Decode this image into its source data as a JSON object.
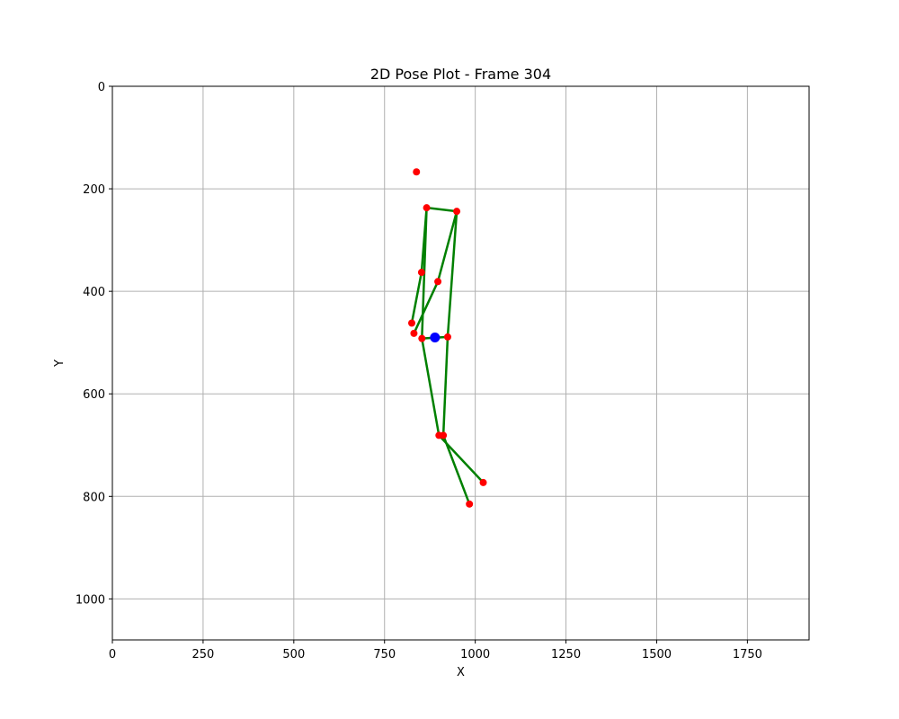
{
  "chart_data": {
    "type": "scatter",
    "title": "2D Pose Plot - Frame 304",
    "xlabel": "X",
    "ylabel": "Y",
    "xlim": [
      0,
      1920
    ],
    "ylim": [
      1080,
      0
    ],
    "y_inverted": true,
    "grid": true,
    "x_ticks": [
      0,
      250,
      500,
      750,
      1000,
      1250,
      1500,
      1750
    ],
    "y_ticks": [
      0,
      200,
      400,
      600,
      800,
      1000
    ],
    "x_tick_labels": [
      "0",
      "250",
      "500",
      "750",
      "1000",
      "1250",
      "1500",
      "1750"
    ],
    "y_tick_labels": [
      "0",
      "200",
      "400",
      "600",
      "800",
      "1000"
    ],
    "keypoints": [
      {
        "x": 838,
        "y": 167
      },
      {
        "x": 866,
        "y": 237
      },
      {
        "x": 949,
        "y": 244
      },
      {
        "x": 852,
        "y": 363
      },
      {
        "x": 897,
        "y": 381
      },
      {
        "x": 825,
        "y": 462
      },
      {
        "x": 831,
        "y": 482
      },
      {
        "x": 853,
        "y": 492
      },
      {
        "x": 924,
        "y": 489
      },
      {
        "x": 900,
        "y": 681
      },
      {
        "x": 912,
        "y": 681
      },
      {
        "x": 1022,
        "y": 773
      },
      {
        "x": 984,
        "y": 815
      }
    ],
    "center_point": {
      "x": 889,
      "y": 490
    },
    "bones": [
      [
        1,
        3
      ],
      [
        3,
        5
      ],
      [
        2,
        4
      ],
      [
        4,
        6
      ],
      [
        1,
        2
      ],
      [
        1,
        7
      ],
      [
        2,
        8
      ],
      [
        7,
        8
      ],
      [
        7,
        9
      ],
      [
        9,
        11
      ],
      [
        8,
        10
      ],
      [
        10,
        12
      ]
    ],
    "colors": {
      "keypoint": "#ff0000",
      "bone": "#008000",
      "center": "#0000ff",
      "grid": "#b0b0b0",
      "axes": "#000000"
    }
  }
}
